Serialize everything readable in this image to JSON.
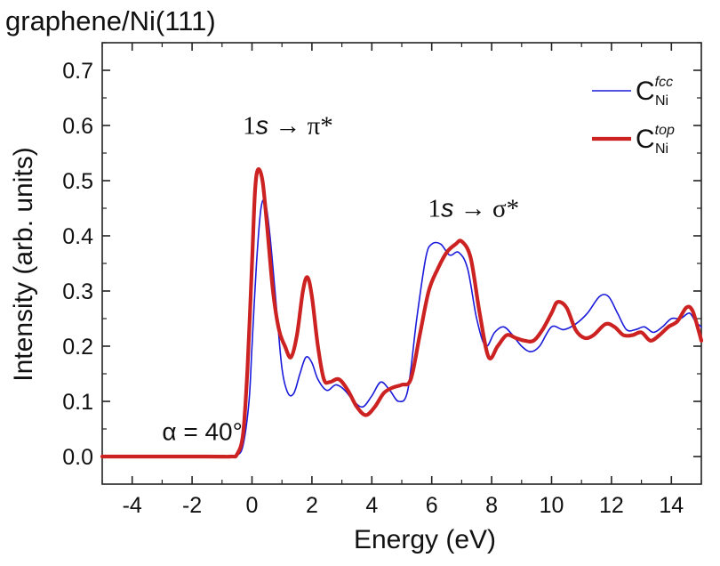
{
  "chart_data": {
    "type": "line",
    "title": "graphene/Ni(111)",
    "xlabel": "Energy (eV)",
    "ylabel": "Intensity (arb. units)",
    "xlim": [
      -5,
      15
    ],
    "ylim": [
      -0.05,
      0.75
    ],
    "xticks": [
      -4,
      -2,
      0,
      2,
      4,
      6,
      8,
      10,
      12,
      14
    ],
    "xtick_labels": [
      "-4",
      "-2",
      "0",
      "2",
      "4",
      "6",
      "8",
      "10",
      "12",
      "14"
    ],
    "yticks": [
      0.0,
      0.1,
      0.2,
      0.3,
      0.4,
      0.5,
      0.6,
      0.7
    ],
    "ytick_labels": [
      "0.0",
      "0.1",
      "0.2",
      "0.3",
      "0.4",
      "0.5",
      "0.6",
      "0.7"
    ],
    "annotations": {
      "pi_star": {
        "prefix": "1",
        "italic": "s",
        "arrow": " → ",
        "suffix": "π*",
        "x": 1.2,
        "y": 0.585
      },
      "sigma_star": {
        "prefix": "1",
        "italic": "s",
        "arrow": " → ",
        "suffix": "σ*",
        "x": 7.4,
        "y": 0.435
      },
      "angle": {
        "text": "α = 40°",
        "x": -3.0,
        "y": 0.03
      }
    },
    "series": [
      {
        "name": "C_Ni^fcc",
        "label_main": "C",
        "label_sup": "fcc",
        "label_sub": "Ni",
        "color": "#1a1adb",
        "x": [
          -5,
          -1.5,
          -0.7,
          -0.5,
          -0.3,
          -0.1,
          0.0,
          0.15,
          0.3,
          0.45,
          0.6,
          0.8,
          1.0,
          1.2,
          1.4,
          1.6,
          1.8,
          2.0,
          2.2,
          2.5,
          2.8,
          3.1,
          3.4,
          3.7,
          4.0,
          4.3,
          4.6,
          4.9,
          5.2,
          5.5,
          5.8,
          6.0,
          6.3,
          6.6,
          6.9,
          7.2,
          7.5,
          7.8,
          8.1,
          8.4,
          8.7,
          9.0,
          9.3,
          9.6,
          10.0,
          10.4,
          10.8,
          11.2,
          11.6,
          11.9,
          12.2,
          12.5,
          12.8,
          13.1,
          13.4,
          13.7,
          14.0,
          14.3,
          14.6,
          14.8,
          15.0
        ],
        "y": [
          0.0,
          0.0,
          0.0,
          0.002,
          0.02,
          0.1,
          0.2,
          0.35,
          0.45,
          0.46,
          0.4,
          0.28,
          0.16,
          0.115,
          0.115,
          0.15,
          0.18,
          0.17,
          0.14,
          0.12,
          0.13,
          0.12,
          0.1,
          0.09,
          0.11,
          0.135,
          0.12,
          0.1,
          0.12,
          0.25,
          0.36,
          0.385,
          0.385,
          0.365,
          0.37,
          0.34,
          0.25,
          0.2,
          0.225,
          0.235,
          0.22,
          0.2,
          0.19,
          0.2,
          0.235,
          0.23,
          0.24,
          0.26,
          0.29,
          0.29,
          0.26,
          0.23,
          0.23,
          0.235,
          0.225,
          0.235,
          0.25,
          0.25,
          0.26,
          0.245,
          0.235
        ]
      },
      {
        "name": "C_Ni^top",
        "label_main": "C",
        "label_sup": "top",
        "label_sub": "Ni",
        "color": "#cc2222",
        "x": [
          -5,
          -1.5,
          -0.7,
          -0.5,
          -0.3,
          -0.15,
          0.0,
          0.1,
          0.2,
          0.35,
          0.5,
          0.7,
          0.9,
          1.1,
          1.3,
          1.5,
          1.7,
          1.85,
          2.0,
          2.2,
          2.4,
          2.6,
          2.9,
          3.2,
          3.5,
          3.8,
          4.1,
          4.4,
          4.7,
          5.0,
          5.3,
          5.6,
          5.9,
          6.2,
          6.5,
          6.8,
          7.0,
          7.3,
          7.6,
          7.9,
          8.2,
          8.5,
          8.8,
          9.1,
          9.4,
          9.7,
          10.0,
          10.2,
          10.5,
          10.8,
          11.1,
          11.4,
          11.8,
          12.1,
          12.4,
          12.7,
          13.0,
          13.3,
          13.6,
          13.9,
          14.2,
          14.5,
          14.7,
          14.9,
          15.0
        ],
        "y": [
          0.0,
          0.0,
          0.0,
          0.004,
          0.04,
          0.16,
          0.35,
          0.48,
          0.52,
          0.5,
          0.42,
          0.3,
          0.23,
          0.2,
          0.18,
          0.22,
          0.3,
          0.325,
          0.29,
          0.2,
          0.14,
          0.135,
          0.14,
          0.12,
          0.09,
          0.075,
          0.09,
          0.115,
          0.125,
          0.13,
          0.14,
          0.22,
          0.3,
          0.34,
          0.37,
          0.385,
          0.39,
          0.36,
          0.26,
          0.18,
          0.2,
          0.22,
          0.215,
          0.21,
          0.21,
          0.23,
          0.26,
          0.28,
          0.27,
          0.23,
          0.215,
          0.22,
          0.24,
          0.235,
          0.22,
          0.22,
          0.225,
          0.21,
          0.22,
          0.235,
          0.245,
          0.27,
          0.265,
          0.23,
          0.21
        ]
      }
    ],
    "legend": "top-right"
  }
}
